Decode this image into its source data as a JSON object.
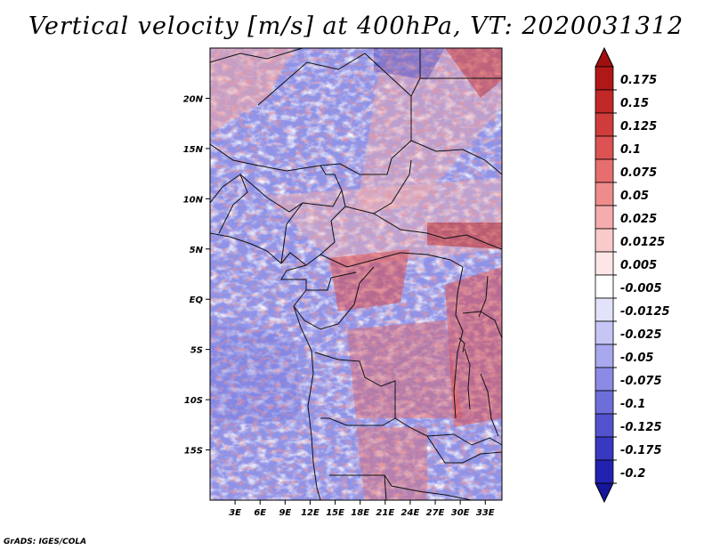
{
  "title": "Vertical velocity [m/s] at 400hPa, VT: 2020031312",
  "credit": "GrADS: IGES/COLA",
  "map": {
    "lon_range": [
      0,
      35
    ],
    "lat_range": [
      -20,
      25
    ],
    "lon_ticks": [
      {
        "value": 3,
        "label": "3E"
      },
      {
        "value": 6,
        "label": "6E"
      },
      {
        "value": 9,
        "label": "9E"
      },
      {
        "value": 12,
        "label": "12E"
      },
      {
        "value": 15,
        "label": "15E"
      },
      {
        "value": 18,
        "label": "18E"
      },
      {
        "value": 21,
        "label": "21E"
      },
      {
        "value": 24,
        "label": "24E"
      },
      {
        "value": 27,
        "label": "27E"
      },
      {
        "value": 30,
        "label": "30E"
      },
      {
        "value": 33,
        "label": "33E"
      }
    ],
    "lat_ticks": [
      {
        "value": 20,
        "label": "20N"
      },
      {
        "value": 15,
        "label": "15N"
      },
      {
        "value": 10,
        "label": "10N"
      },
      {
        "value": 5,
        "label": "5N"
      },
      {
        "value": 0,
        "label": "EQ"
      },
      {
        "value": -5,
        "label": "5S"
      },
      {
        "value": -10,
        "label": "10S"
      },
      {
        "value": -15,
        "label": "15S"
      }
    ]
  },
  "colorbar": {
    "levels": [
      {
        "label": "0.175",
        "color": "#b01818"
      },
      {
        "label": "0.15",
        "color": "#c12828"
      },
      {
        "label": "0.125",
        "color": "#d03c3c"
      },
      {
        "label": "0.1",
        "color": "#dd5252"
      },
      {
        "label": "0.075",
        "color": "#e66e6e"
      },
      {
        "label": "0.05",
        "color": "#ee8c8c"
      },
      {
        "label": "0.025",
        "color": "#f5acac"
      },
      {
        "label": "0.0125",
        "color": "#f9caca"
      },
      {
        "label": "0.005",
        "color": "#fde6e6"
      },
      {
        "label": "-0.005",
        "color": "#ffffff"
      },
      {
        "label": "-0.0125",
        "color": "#e2e2fb"
      },
      {
        "label": "-0.025",
        "color": "#c6c6f5"
      },
      {
        "label": "-0.05",
        "color": "#a8a8ee"
      },
      {
        "label": "-0.075",
        "color": "#8b8be5"
      },
      {
        "label": "-0.1",
        "color": "#6e6edb"
      },
      {
        "label": "-0.125",
        "color": "#5252cf"
      },
      {
        "label": "-0.175",
        "color": "#3838c0"
      },
      {
        "label": "-0.2",
        "color": "#2222b0"
      }
    ],
    "top_color": "#a01010",
    "bottom_color": "#16169a"
  }
}
